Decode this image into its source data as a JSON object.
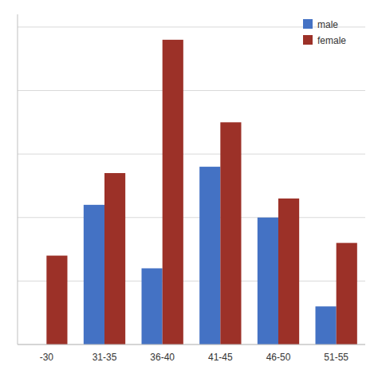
{
  "chart_data": {
    "type": "bar",
    "categories": [
      "-30",
      "31-35",
      "36-40",
      "41-45",
      "46-50",
      "51-55"
    ],
    "series": [
      {
        "name": "male",
        "color": "#4472C4",
        "values": [
          0,
          22,
          12,
          28,
          20,
          6
        ]
      },
      {
        "name": "female",
        "color": "#9C3128",
        "values": [
          14,
          27,
          48,
          35,
          23,
          16
        ]
      }
    ],
    "ylim": [
      0,
      52
    ],
    "yticks": [
      0,
      10,
      20,
      30,
      40,
      50
    ],
    "grid": true,
    "legend": "upper right",
    "tick_labels": "x"
  }
}
